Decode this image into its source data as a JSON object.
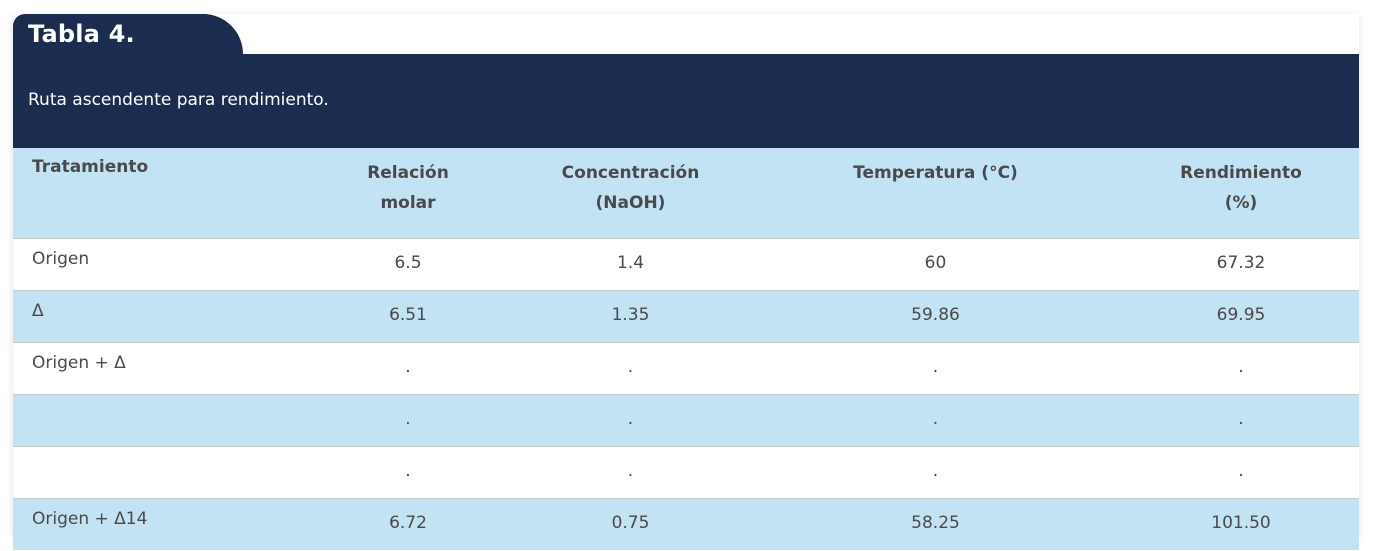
{
  "table": {
    "title": "Tabla 4.",
    "caption": "Ruta ascendente para rendimiento.",
    "headers": [
      {
        "line1": "Tratamiento",
        "line2": ""
      },
      {
        "line1": "Relación",
        "line2": "molar"
      },
      {
        "line1": "Concentración",
        "line2": "(NaOH)"
      },
      {
        "line1": "Temperatura (°C)",
        "line2": ""
      },
      {
        "line1": "Rendimiento",
        "line2": "(%)"
      }
    ],
    "rows": [
      [
        "Origen",
        "6.5",
        "1.4",
        "60",
        "67.32"
      ],
      [
        "Δ",
        "6.51",
        "1.35",
        "59.86",
        "69.95"
      ],
      [
        "Origen + Δ",
        ".",
        ".",
        ".",
        "."
      ],
      [
        "",
        ".",
        ".",
        ".",
        "."
      ],
      [
        "",
        ".",
        ".",
        ".",
        "."
      ],
      [
        "Origen + Δ14",
        "6.72",
        "0.75",
        "58.25",
        "101.50"
      ]
    ]
  },
  "colors": {
    "header_bg": "#1b2d4f",
    "row_blue": "#c1e3f4",
    "row_white": "#ffffff",
    "text": "#4a4a4a"
  }
}
